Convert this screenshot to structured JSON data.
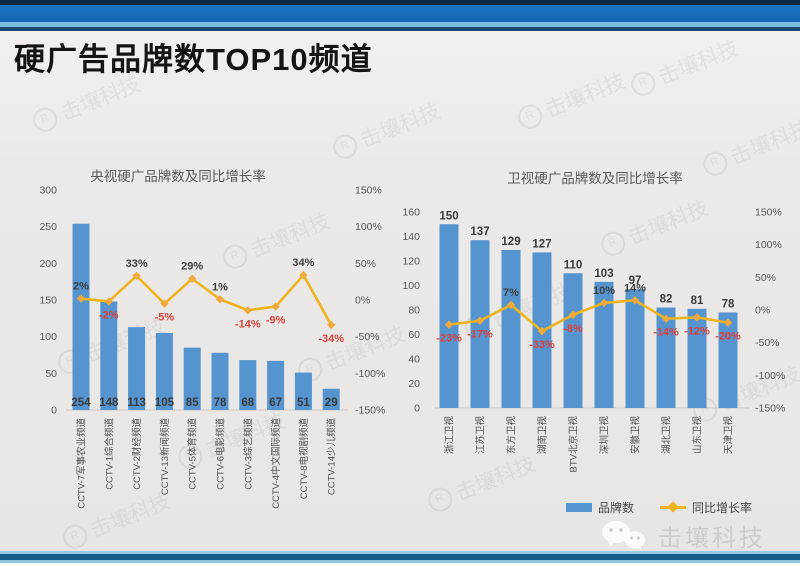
{
  "page": {
    "title": "硬广告品牌数TOP10频道",
    "brand": "击壤科技",
    "watermark": "击壤科技"
  },
  "colors": {
    "bar": "#5594cf",
    "line": "#edb420",
    "negative_label": "#d9423c",
    "positive_label": "#3f3f3f",
    "axis_text": "#565656",
    "banner_blue": "#1465ae"
  },
  "legend": {
    "items": [
      {
        "label": "品牌数",
        "type": "bar"
      },
      {
        "label": "同比增长率",
        "type": "line"
      }
    ]
  },
  "chart_data": [
    {
      "type": "bar",
      "title": "央视硬广品牌数及同比增长率",
      "categories": [
        "CCTV-7军事农业频道",
        "CCTV-1综合频道",
        "CCTV-2财经频道",
        "CCTV-13新闻频道",
        "CCTV-5体育频道",
        "CCTV-6电影频道",
        "CCTV-3综艺频道",
        "CCTV-4中文国际频道",
        "CCTV-8电视剧频道",
        "CCTV-14少儿频道"
      ],
      "series": [
        {
          "name": "品牌数",
          "type": "bar",
          "values": [
            254,
            148,
            113,
            105,
            85,
            78,
            68,
            67,
            51,
            29
          ]
        },
        {
          "name": "同比增长率",
          "type": "line",
          "values_pct": [
            2,
            -2,
            33,
            -5,
            29,
            1,
            -14,
            -9,
            34,
            -34
          ],
          "labels": [
            "2%",
            "-2%",
            "33%",
            "-5%",
            "29%",
            "1%",
            "-14%",
            "-9%",
            "34%",
            "-34%"
          ]
        }
      ],
      "left_axis": {
        "ticks": [
          "300",
          "250",
          "200",
          "150",
          "100",
          "50",
          "0"
        ],
        "min": 0,
        "max": 300
      },
      "right_axis": {
        "ticks": [
          "150%",
          "100%",
          "50%",
          "0%",
          "-50%",
          "-100%",
          "-150%"
        ],
        "min": -150,
        "max": 150
      },
      "bar_label_position": "inside-bottom",
      "grid": "off"
    },
    {
      "type": "bar",
      "title": "卫视硬广品牌数及同比增长率",
      "categories": [
        "浙江卫视",
        "江苏卫视",
        "东方卫视",
        "湖南卫视",
        "BTV北京卫视",
        "深圳卫视",
        "安徽卫视",
        "湖北卫视",
        "山东卫视",
        "天津卫视"
      ],
      "series": [
        {
          "name": "品牌数",
          "type": "bar",
          "values": [
            150,
            137,
            129,
            127,
            110,
            103,
            97,
            82,
            81,
            78
          ]
        },
        {
          "name": "同比增长率",
          "type": "line",
          "values_pct": [
            -23,
            -17,
            7,
            -33,
            -8,
            10,
            14,
            -14,
            -12,
            -20
          ],
          "labels": [
            "-23%",
            "-17%",
            "7%",
            "-33%",
            "-8%",
            "10%",
            "14%",
            "-14%",
            "-12%",
            "-20%"
          ]
        }
      ],
      "left_axis": {
        "ticks": [
          "160",
          "140",
          "120",
          "100",
          "80",
          "60",
          "40",
          "20",
          "0"
        ],
        "min": 0,
        "max": 160
      },
      "right_axis": {
        "ticks": [
          "150%",
          "100%",
          "50%",
          "0%",
          "-50%",
          "-100%",
          "-150%"
        ],
        "min": -150,
        "max": 150
      },
      "bar_label_position": "above",
      "grid": "off"
    }
  ]
}
